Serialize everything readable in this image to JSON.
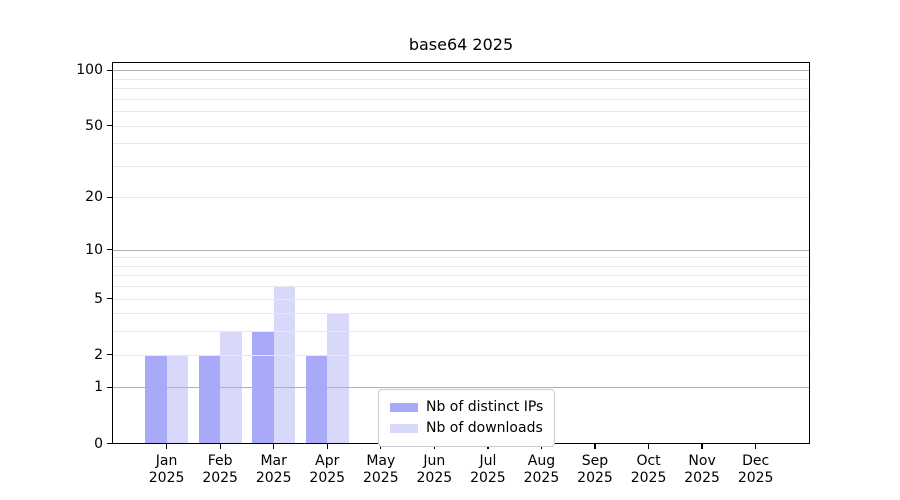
{
  "chart_data": {
    "type": "bar",
    "title": "base64 2025",
    "categories": [
      "Jan",
      "Feb",
      "Mar",
      "Apr",
      "May",
      "Jun",
      "Jul",
      "Aug",
      "Sep",
      "Oct",
      "Nov",
      "Dec"
    ],
    "x_tick_year": "2025",
    "series": [
      {
        "name": "Nb of distinct IPs",
        "color": "#a9a9fa",
        "values": [
          2,
          2,
          3,
          2,
          0,
          0,
          0,
          0,
          0,
          0,
          0,
          0
        ]
      },
      {
        "name": "Nb of downloads",
        "color": "#d8d8fa",
        "values": [
          2,
          3,
          6,
          4,
          0,
          0,
          0,
          0,
          0,
          0,
          0,
          0
        ]
      }
    ],
    "yscale": "log1p",
    "ylim": [
      0,
      111
    ],
    "y_ticks": [
      100,
      50,
      20,
      10,
      5,
      2,
      1,
      0
    ],
    "grid_major": [
      1,
      10,
      100
    ],
    "grid_minor": [
      2,
      3,
      4,
      5,
      6,
      7,
      8,
      9,
      20,
      30,
      40,
      50,
      60,
      70,
      80,
      90
    ],
    "grid_on": true,
    "legend_position": "lower center",
    "colors": {
      "grid_major": "#b0b0b0",
      "grid_minor": "#e8e8e8",
      "spine": "#000000",
      "text": "#000000",
      "background": "#ffffff"
    }
  }
}
